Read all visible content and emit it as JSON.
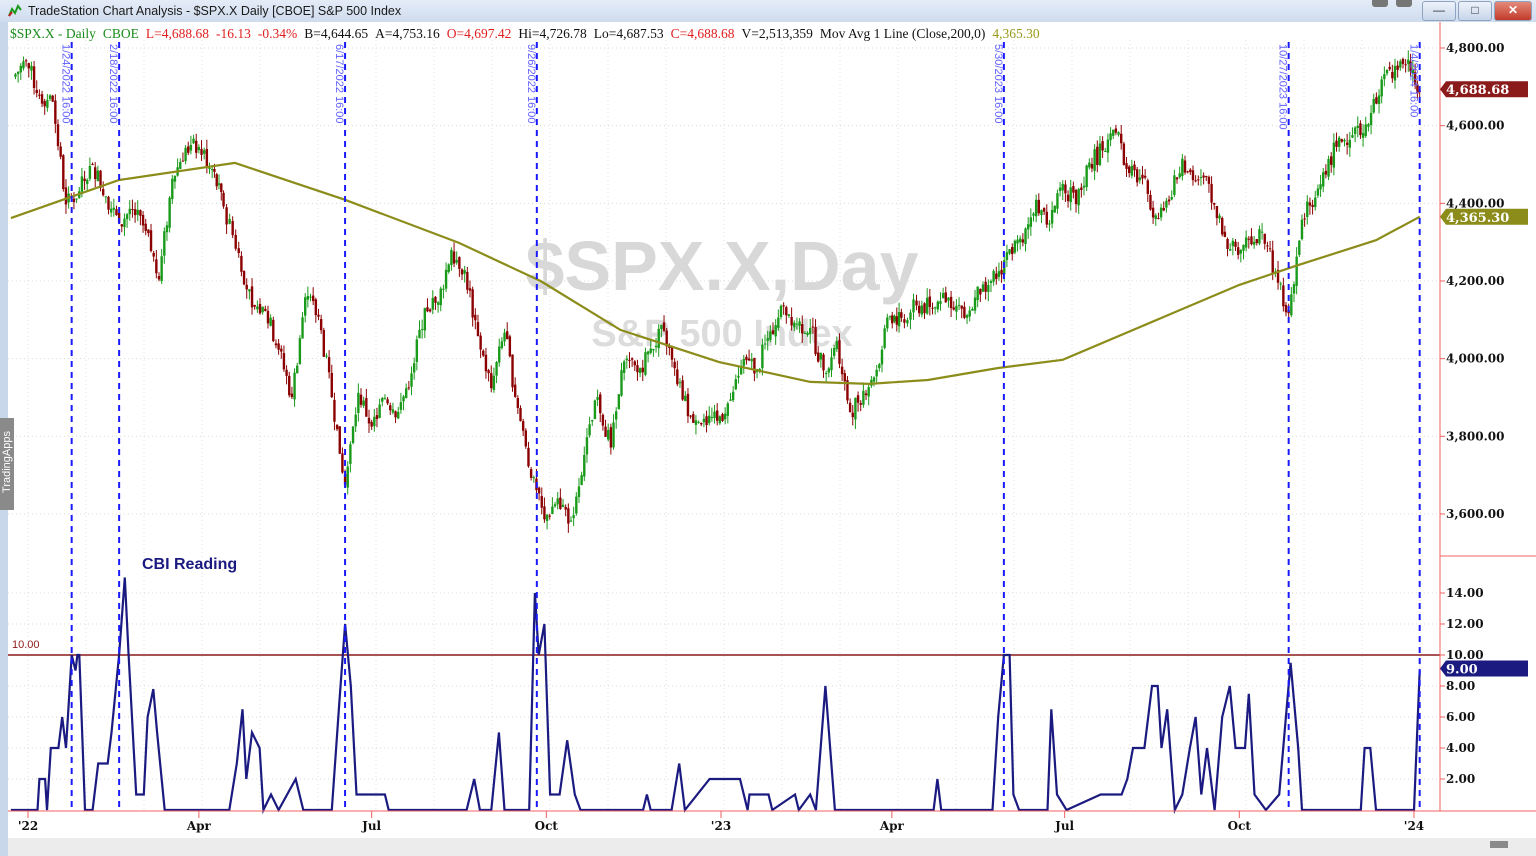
{
  "window": {
    "title": "TradeStation Chart Analysis - $SPX.X Daily [CBOE] S&P 500 Index",
    "buttons": {
      "minimize": "—",
      "maximize": "□",
      "close": "✕"
    }
  },
  "legend": [
    {
      "text": "$SPX.X - Daily",
      "color": "#1a8c1a"
    },
    {
      "text": "CBOE",
      "color": "#1a8c1a"
    },
    {
      "text": "L=4,688.68",
      "color": "#e02020"
    },
    {
      "text": "-16.13",
      "color": "#e02020"
    },
    {
      "text": "-0.34%",
      "color": "#e02020"
    },
    {
      "text": "B=4,644.65",
      "color": "#111111"
    },
    {
      "text": "A=4,753.16",
      "color": "#111111"
    },
    {
      "text": "O=4,697.42",
      "color": "#e02020"
    },
    {
      "text": "Hi=4,726.78",
      "color": "#111111"
    },
    {
      "text": "Lo=4,687.53",
      "color": "#111111"
    },
    {
      "text": "C=4,688.68",
      "color": "#e02020"
    },
    {
      "text": "V=2,513,359",
      "color": "#111111"
    },
    {
      "text": "Mov Avg 1 Line (Close,200,0)",
      "color": "#111111"
    },
    {
      "text": "4,365.30",
      "color": "#9a9a1a"
    }
  ],
  "watermark": {
    "symbol": "$SPX.X,Day",
    "name": "S&P 500 Index"
  },
  "side_tab": "TradingApps",
  "chart_data": [
    {
      "type": "candlestick",
      "title": "$SPX.X Daily",
      "ylim": [
        3500,
        4850
      ],
      "y_ticks": [
        "4,800.00",
        "4,600.00",
        "4,400.00",
        "4,200.00",
        "4,000.00",
        "3,800.00",
        "3,600.00"
      ],
      "y_tick_values": [
        4800,
        4600,
        4400,
        4200,
        4000,
        3800,
        3600
      ],
      "grid": true,
      "colors": {
        "up": "#1a9a1a",
        "down": "#8b0000",
        "ma": "#8c8c1a"
      },
      "last_price": {
        "label": "4,688.68",
        "value": 4688.68,
        "color": "#8b1a1a"
      },
      "ma_value": {
        "label": "4,365.30",
        "value": 4365.3,
        "color": "#8c8c1a"
      },
      "weekly_closes": [
        [
          "2021-12-24",
          4725
        ],
        [
          "2021-12-31",
          4766
        ],
        [
          "2022-01-07",
          4677
        ],
        [
          "2022-01-14",
          4662
        ],
        [
          "2022-01-21",
          4397
        ],
        [
          "2022-01-28",
          4431
        ],
        [
          "2022-02-04",
          4500
        ],
        [
          "2022-02-11",
          4418
        ],
        [
          "2022-02-18",
          4349
        ],
        [
          "2022-02-25",
          4385
        ],
        [
          "2022-03-04",
          4329
        ],
        [
          "2022-03-11",
          4204
        ],
        [
          "2022-03-18",
          4463
        ],
        [
          "2022-03-25",
          4543
        ],
        [
          "2022-04-01",
          4545
        ],
        [
          "2022-04-08",
          4488
        ],
        [
          "2022-04-14",
          4392
        ],
        [
          "2022-04-22",
          4272
        ],
        [
          "2022-04-29",
          4132
        ],
        [
          "2022-05-06",
          4123
        ],
        [
          "2022-05-13",
          4023
        ],
        [
          "2022-05-20",
          3901
        ],
        [
          "2022-05-27",
          4158
        ],
        [
          "2022-06-03",
          4108
        ],
        [
          "2022-06-10",
          3901
        ],
        [
          "2022-06-17",
          3675
        ],
        [
          "2022-06-24",
          3912
        ],
        [
          "2022-07-01",
          3825
        ],
        [
          "2022-07-08",
          3899
        ],
        [
          "2022-07-15",
          3863
        ],
        [
          "2022-07-22",
          3962
        ],
        [
          "2022-07-29",
          4130
        ],
        [
          "2022-08-05",
          4145
        ],
        [
          "2022-08-12",
          4280
        ],
        [
          "2022-08-19",
          4228
        ],
        [
          "2022-08-26",
          4058
        ],
        [
          "2022-09-02",
          3924
        ],
        [
          "2022-09-09",
          4067
        ],
        [
          "2022-09-16",
          3873
        ],
        [
          "2022-09-23",
          3693
        ],
        [
          "2022-09-30",
          3586
        ],
        [
          "2022-10-07",
          3640
        ],
        [
          "2022-10-14",
          3583
        ],
        [
          "2022-10-21",
          3752
        ],
        [
          "2022-10-28",
          3901
        ],
        [
          "2022-11-04",
          3771
        ],
        [
          "2022-11-11",
          3993
        ],
        [
          "2022-11-18",
          3965
        ],
        [
          "2022-11-25",
          4026
        ],
        [
          "2022-12-02",
          4072
        ],
        [
          "2022-12-09",
          3934
        ],
        [
          "2022-12-16",
          3852
        ],
        [
          "2022-12-23",
          3845
        ],
        [
          "2022-12-30",
          3840
        ],
        [
          "2023-01-06",
          3895
        ],
        [
          "2023-01-13",
          3999
        ],
        [
          "2023-01-20",
          3973
        ],
        [
          "2023-01-27",
          4070
        ],
        [
          "2023-02-03",
          4136
        ],
        [
          "2023-02-10",
          4090
        ],
        [
          "2023-02-17",
          4079
        ],
        [
          "2023-02-24",
          3970
        ],
        [
          "2023-03-03",
          4045
        ],
        [
          "2023-03-10",
          3862
        ],
        [
          "2023-03-17",
          3917
        ],
        [
          "2023-03-24",
          3971
        ],
        [
          "2023-03-31",
          4109
        ],
        [
          "2023-04-06",
          4105
        ],
        [
          "2023-04-14",
          4137
        ],
        [
          "2023-04-21",
          4133
        ],
        [
          "2023-04-28",
          4169
        ],
        [
          "2023-05-05",
          4136
        ],
        [
          "2023-05-12",
          4124
        ],
        [
          "2023-05-19",
          4191
        ],
        [
          "2023-05-26",
          4205
        ],
        [
          "2023-06-02",
          4282
        ],
        [
          "2023-06-09",
          4299
        ],
        [
          "2023-06-16",
          4409
        ],
        [
          "2023-06-23",
          4348
        ],
        [
          "2023-06-30",
          4450
        ],
        [
          "2023-07-07",
          4398
        ],
        [
          "2023-07-14",
          4505
        ],
        [
          "2023-07-21",
          4536
        ],
        [
          "2023-07-28",
          4582
        ],
        [
          "2023-08-04",
          4478
        ],
        [
          "2023-08-11",
          4464
        ],
        [
          "2023-08-18",
          4369
        ],
        [
          "2023-08-25",
          4405
        ],
        [
          "2023-09-01",
          4515
        ],
        [
          "2023-09-08",
          4457
        ],
        [
          "2023-09-15",
          4450
        ],
        [
          "2023-09-22",
          4320
        ],
        [
          "2023-09-29",
          4288
        ],
        [
          "2023-10-06",
          4308
        ],
        [
          "2023-10-13",
          4327
        ],
        [
          "2023-10-20",
          4224
        ],
        [
          "2023-10-27",
          4117
        ],
        [
          "2023-11-03",
          4358
        ],
        [
          "2023-11-10",
          4415
        ],
        [
          "2023-11-17",
          4514
        ],
        [
          "2023-11-24",
          4559
        ],
        [
          "2023-12-01",
          4595
        ],
        [
          "2023-12-08",
          4604
        ],
        [
          "2023-12-15",
          4719
        ],
        [
          "2023-12-22",
          4754
        ],
        [
          "2023-12-29",
          4770
        ],
        [
          "2024-01-04",
          4688.68
        ]
      ],
      "moving_average_200": [
        [
          "2021-12-23",
          4362
        ],
        [
          "2022-02-18",
          4460
        ],
        [
          "2022-04-20",
          4504
        ],
        [
          "2022-06-17",
          4409
        ],
        [
          "2022-08-16",
          4298
        ],
        [
          "2022-09-28",
          4200
        ],
        [
          "2022-11-09",
          4074
        ],
        [
          "2022-12-31",
          3991
        ],
        [
          "2023-02-17",
          3940
        ],
        [
          "2023-03-20",
          3935
        ],
        [
          "2023-04-20",
          3945
        ],
        [
          "2023-05-27",
          3976
        ],
        [
          "2023-06-30",
          3997
        ],
        [
          "2023-08-21",
          4105
        ],
        [
          "2023-10-01",
          4190
        ],
        [
          "2023-11-01",
          4241
        ],
        [
          "2023-12-12",
          4305
        ],
        [
          "2024-01-04",
          4365.3
        ]
      ],
      "event_markers": [
        {
          "date": "2022-01-24",
          "label": "1/24/2022 16:00"
        },
        {
          "date": "2022-02-18",
          "label": "2/18/2022 16:00"
        },
        {
          "date": "2022-06-17",
          "label": "6/17/2022 16:00"
        },
        {
          "date": "2022-09-26",
          "label": "9/26/2022 16:00"
        },
        {
          "date": "2023-05-30",
          "label": "5/30/2023 16:00"
        },
        {
          "date": "2023-10-27",
          "label": "10/27/2023 16:00"
        },
        {
          "date": "2024-01-04",
          "label": "1/4/2024 16:00"
        }
      ]
    },
    {
      "type": "line",
      "title": "CBI Reading",
      "ylim": [
        0,
        15
      ],
      "y_ticks": [
        "14.00",
        "12.00",
        "10.00",
        "8.00",
        "6.00",
        "4.00",
        "2.00"
      ],
      "y_tick_values": [
        14,
        12,
        10,
        8,
        6,
        4,
        2
      ],
      "threshold": {
        "value": 10,
        "label": "10.00",
        "color": "#8b1a1a"
      },
      "last_value": {
        "label": "9.00",
        "value": 9,
        "color": "#1a1a80"
      },
      "color": "#1a1a80",
      "points": [
        [
          "2021-12-23",
          0
        ],
        [
          "2022-01-06",
          0
        ],
        [
          "2022-01-07",
          2
        ],
        [
          "2022-01-10",
          2
        ],
        [
          "2022-01-11",
          0
        ],
        [
          "2022-01-13",
          4
        ],
        [
          "2022-01-17",
          4
        ],
        [
          "2022-01-19",
          6
        ],
        [
          "2022-01-21",
          4
        ],
        [
          "2022-01-24",
          10
        ],
        [
          "2022-01-26",
          9
        ],
        [
          "2022-01-27",
          10
        ],
        [
          "2022-01-28",
          10
        ],
        [
          "2022-01-31",
          0
        ],
        [
          "2022-02-04",
          0
        ],
        [
          "2022-02-07",
          3
        ],
        [
          "2022-02-12",
          3
        ],
        [
          "2022-02-14",
          5
        ],
        [
          "2022-02-18",
          10
        ],
        [
          "2022-02-21",
          15
        ],
        [
          "2022-02-23",
          10
        ],
        [
          "2022-02-27",
          1
        ],
        [
          "2022-03-03",
          1
        ],
        [
          "2022-03-05",
          6
        ],
        [
          "2022-03-08",
          7.8
        ],
        [
          "2022-03-10",
          5
        ],
        [
          "2022-03-14",
          0
        ],
        [
          "2022-04-17",
          0
        ],
        [
          "2022-04-21",
          3
        ],
        [
          "2022-04-24",
          6.5
        ],
        [
          "2022-04-26",
          2
        ],
        [
          "2022-04-29",
          5
        ],
        [
          "2022-05-03",
          4
        ],
        [
          "2022-05-05",
          0
        ],
        [
          "2022-05-09",
          1
        ],
        [
          "2022-05-13",
          0
        ],
        [
          "2022-05-22",
          2
        ],
        [
          "2022-05-26",
          0
        ],
        [
          "2022-06-10",
          0
        ],
        [
          "2022-06-14",
          7
        ],
        [
          "2022-06-17",
          12
        ],
        [
          "2022-06-20",
          8
        ],
        [
          "2022-06-23",
          1
        ],
        [
          "2022-07-08",
          1
        ],
        [
          "2022-07-10",
          0
        ],
        [
          "2022-08-20",
          0
        ],
        [
          "2022-08-24",
          2
        ],
        [
          "2022-08-27",
          0
        ],
        [
          "2022-09-02",
          0
        ],
        [
          "2022-09-06",
          5
        ],
        [
          "2022-09-09",
          0
        ],
        [
          "2022-09-22",
          0
        ],
        [
          "2022-09-25",
          14
        ],
        [
          "2022-09-27",
          10
        ],
        [
          "2022-09-30",
          12
        ],
        [
          "2022-10-03",
          1
        ],
        [
          "2022-10-08",
          1
        ],
        [
          "2022-10-12",
          4.5
        ],
        [
          "2022-10-16",
          1
        ],
        [
          "2022-10-19",
          0
        ],
        [
          "2022-11-21",
          0
        ],
        [
          "2022-11-23",
          1
        ],
        [
          "2022-11-25",
          0
        ],
        [
          "2022-12-06",
          0
        ],
        [
          "2022-12-10",
          3
        ],
        [
          "2022-12-13",
          0
        ],
        [
          "2022-12-26",
          2
        ],
        [
          "2023-01-11",
          2
        ],
        [
          "2023-01-15",
          0
        ],
        [
          "2023-01-16",
          1
        ],
        [
          "2023-01-26",
          1
        ],
        [
          "2023-01-28",
          0
        ],
        [
          "2023-02-09",
          1
        ],
        [
          "2023-02-11",
          0
        ],
        [
          "2023-02-17",
          1
        ],
        [
          "2023-02-20",
          0
        ],
        [
          "2023-02-25",
          8
        ],
        [
          "2023-03-02",
          0
        ],
        [
          "2023-04-23",
          0
        ],
        [
          "2023-04-25",
          2
        ],
        [
          "2023-04-27",
          0
        ],
        [
          "2023-05-24",
          0
        ],
        [
          "2023-05-27",
          6
        ],
        [
          "2023-05-30",
          10
        ],
        [
          "2023-06-02",
          10
        ],
        [
          "2023-06-04",
          1
        ],
        [
          "2023-06-07",
          0
        ],
        [
          "2023-06-22",
          0
        ],
        [
          "2023-06-24",
          6.5
        ],
        [
          "2023-06-27",
          1
        ],
        [
          "2023-07-02",
          0
        ],
        [
          "2023-07-20",
          1
        ],
        [
          "2023-07-31",
          1
        ],
        [
          "2023-08-03",
          2
        ],
        [
          "2023-08-06",
          4
        ],
        [
          "2023-08-12",
          4
        ],
        [
          "2023-08-16",
          8
        ],
        [
          "2023-08-19",
          8
        ],
        [
          "2023-08-21",
          4
        ],
        [
          "2023-08-24",
          6.5
        ],
        [
          "2023-08-28",
          0
        ],
        [
          "2023-09-01",
          1
        ],
        [
          "2023-09-05",
          4
        ],
        [
          "2023-09-08",
          6
        ],
        [
          "2023-09-11",
          1
        ],
        [
          "2023-09-14",
          4
        ],
        [
          "2023-09-18",
          0
        ],
        [
          "2023-09-22",
          6
        ],
        [
          "2023-09-26",
          8
        ],
        [
          "2023-09-29",
          4
        ],
        [
          "2023-10-04",
          4
        ],
        [
          "2023-10-06",
          7.5
        ],
        [
          "2023-10-09",
          1
        ],
        [
          "2023-10-15",
          0
        ],
        [
          "2023-10-22",
          1
        ],
        [
          "2023-10-28",
          9.5
        ],
        [
          "2023-11-01",
          4
        ],
        [
          "2023-11-03",
          0
        ],
        [
          "2023-12-04",
          0
        ],
        [
          "2023-12-06",
          4
        ],
        [
          "2023-12-09",
          4
        ],
        [
          "2023-12-12",
          0
        ],
        [
          "2024-01-01",
          0
        ],
        [
          "2024-01-04",
          9
        ]
      ]
    }
  ],
  "x_axis": {
    "ticks": [
      {
        "date": "2022-01-01",
        "label": "'22"
      },
      {
        "date": "2022-04-01",
        "label": "Apr"
      },
      {
        "date": "2022-07-01",
        "label": "Jul"
      },
      {
        "date": "2022-10-01",
        "label": "Oct"
      },
      {
        "date": "2023-01-01",
        "label": "'23"
      },
      {
        "date": "2023-04-01",
        "label": "Apr"
      },
      {
        "date": "2023-07-01",
        "label": "Jul"
      },
      {
        "date": "2023-10-01",
        "label": "Oct"
      },
      {
        "date": "2024-01-01",
        "label": "'24"
      }
    ]
  }
}
